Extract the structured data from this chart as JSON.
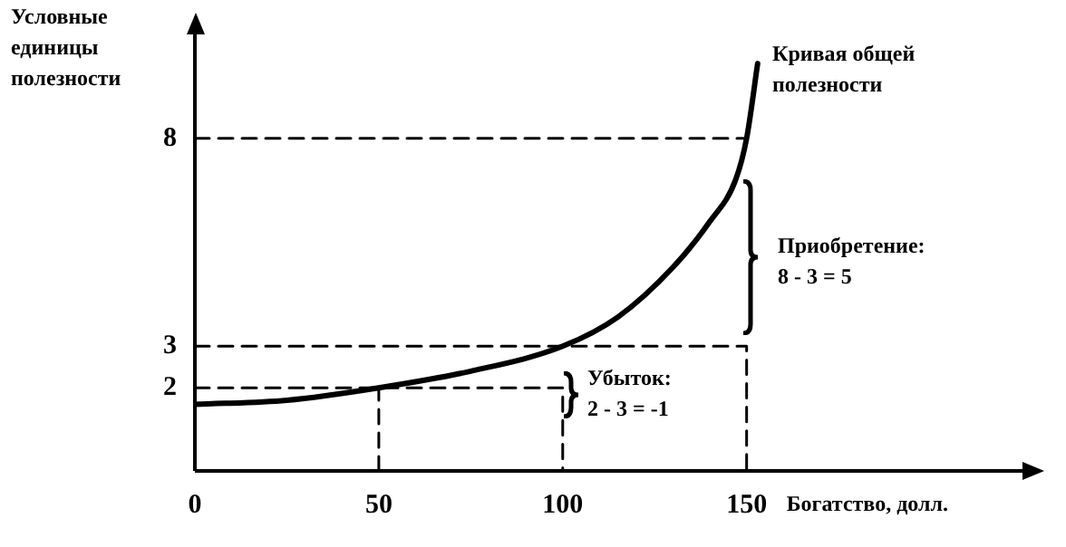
{
  "chart_data": {
    "type": "line",
    "xlabel": "Богатство, долл.",
    "ylabel": "Условные единицы полезности",
    "xlim": [
      0,
      225
    ],
    "ylim": [
      0,
      10.5
    ],
    "xticks": [
      0,
      50,
      100,
      150
    ],
    "yticks": [
      2,
      3,
      8
    ],
    "grid": false,
    "legend": false,
    "marker": "none",
    "series": [
      {
        "color": "#000000",
        "line_style": "solid",
        "x": [
          0,
          25,
          50,
          75,
          100,
          115,
          130,
          140,
          147,
          150,
          153
        ],
        "values": [
          1.6,
          1.7,
          2,
          2.4,
          3,
          3.7,
          4.9,
          6,
          7,
          8,
          9.8
        ]
      },
      {
        "type": "line",
        "color": "#000000",
        "line_style": "dashed",
        "x": [
          0,
          100,
          100
        ],
        "values": [
          2,
          2,
          0
        ]
      },
      {
        "type": "line",
        "color": "#000000",
        "line_style": "dashed",
        "x": [
          0,
          150,
          150
        ],
        "values": [
          3,
          3,
          0
        ]
      },
      {
        "type": "line",
        "color": "#000000",
        "line_style": "dashed",
        "x": [
          0,
          150
        ],
        "values": [
          8,
          8
        ]
      },
      {
        "type": "line",
        "color": "#000000",
        "line_style": "dashed",
        "x": [
          50,
          50
        ],
        "values": [
          0,
          2
        ]
      }
    ],
    "annotations": [
      "Кривая общей\nполезности",
      "Приобретение:\n8 - 3 = 5",
      "Убыток:\n2 - 3 = -1"
    ]
  }
}
